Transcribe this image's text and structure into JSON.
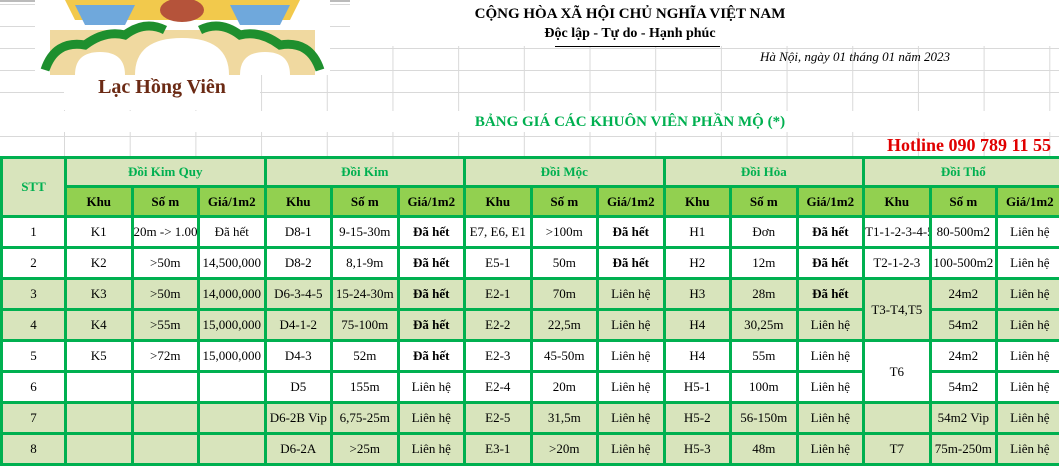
{
  "header": {
    "brand": "Lạc Hồng Viên",
    "nation": "CỘNG HÒA XÃ HỘI CHỦ NGHĨA VIỆT NAM",
    "motto": "Độc lập - Tự do - Hạnh phúc",
    "date": "Hà Nội, ngày 01 tháng 01 năm 2023",
    "title": "BẢNG GIÁ CÁC KHUÔN VIÊN PHẦN MỘ (*)",
    "hotline": "Hotline 090 789 11 55"
  },
  "colors": {
    "border": "#00b050",
    "header_light": "#d8e4bc",
    "header_green": "#92d050",
    "hotline": "#e00000",
    "title": "#00b050",
    "brand": "#6b2a14"
  },
  "table": {
    "stt_label": "STT",
    "groups": [
      "Đồi Kim Quy",
      "Đồi Kim",
      "Đồi Mộc",
      "Đồi Hỏa",
      "Đồi Thổ"
    ],
    "sub": [
      "Khu",
      "Số m",
      "Giá/1m2"
    ],
    "rows": [
      {
        "stt": "1",
        "cells": [
          "K1",
          "20m -> 1.000",
          "Đã hết",
          "D8-1",
          "9-15-30m",
          "Đã hết",
          "E7, E6, E1",
          ">100m",
          "Đã hết",
          "H1",
          "Đơn",
          "Đã hết",
          "T1-1-2-3-4-5",
          "80-500m2",
          "Liên hệ"
        ]
      },
      {
        "stt": "2",
        "cells": [
          "K2",
          ">50m",
          "14,500,000",
          "D8-2",
          "8,1-9m",
          "Đã hết",
          "E5-1",
          "50m",
          "Đã hết",
          "H2",
          "12m",
          "Đã hết",
          "T2-1-2-3",
          "100-500m2",
          "Liên hệ"
        ]
      },
      {
        "stt": "3",
        "cells": [
          "K3",
          ">50m",
          "14,000,000",
          "D6-3-4-5",
          "15-24-30m",
          "Đã hết",
          "E2-1",
          "70m",
          "Liên hệ",
          "H3",
          "28m",
          "Đã hết",
          "T3-T4,T5",
          "24m2",
          "Liên hệ"
        ]
      },
      {
        "stt": "4",
        "cells": [
          "K4",
          ">55m",
          "15,000,000",
          "D4-1-2",
          "75-100m",
          "Đã hết",
          "E2-2",
          "22,5m",
          "Liên hệ",
          "H4",
          "30,25m",
          "Liên hệ",
          "",
          "54m2",
          "Liên hệ"
        ]
      },
      {
        "stt": "5",
        "cells": [
          "K5",
          ">72m",
          "15,000,000",
          "D4-3",
          "52m",
          "Đã hết",
          "E2-3",
          "45-50m",
          "Liên hệ",
          "H4",
          "55m",
          "Liên hệ",
          "T6",
          "24m2",
          "Liên hệ"
        ]
      },
      {
        "stt": "6",
        "cells": [
          "",
          "",
          "",
          "D5",
          "155m",
          "Liên hệ",
          "E2-4",
          "20m",
          "Liên hệ",
          "H5-1",
          "100m",
          "Liên hệ",
          "",
          "54m2",
          "Liên hệ"
        ]
      },
      {
        "stt": "7",
        "cells": [
          "",
          "",
          "",
          "D6-2B Vip",
          "6,75-25m",
          "Liên hệ",
          "E2-5",
          "31,5m",
          "Liên hệ",
          "H5-2",
          "56-150m",
          "Liên hệ",
          "",
          "54m2 Vip",
          "Liên hệ"
        ]
      },
      {
        "stt": "8",
        "cells": [
          "",
          "",
          "",
          "D6-2A",
          ">25m",
          "Liên hệ",
          "E3-1",
          ">20m",
          "Liên hệ",
          "H5-3",
          "48m",
          "Liên hệ",
          "T7",
          "75m-250m",
          "Liên hệ"
        ]
      }
    ]
  }
}
